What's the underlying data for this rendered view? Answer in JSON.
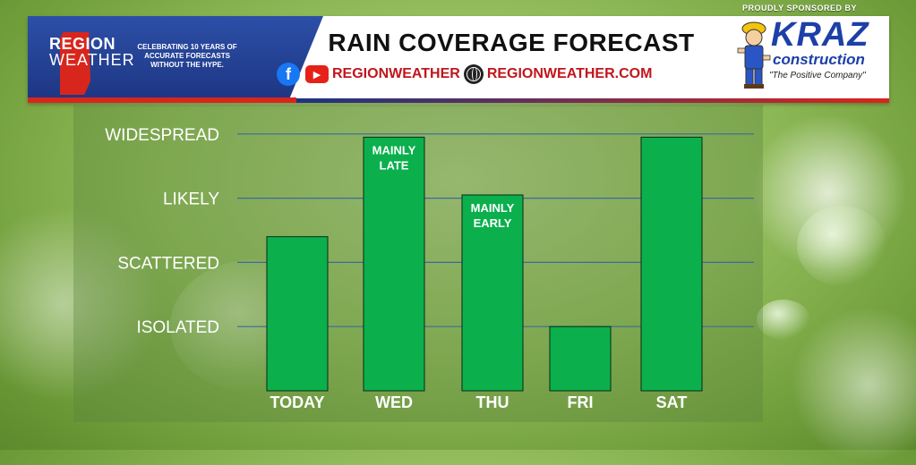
{
  "header": {
    "logo_line1": "REGION",
    "logo_line2": "WEATHER",
    "tagline": "CELEBRATING 10 YEARS OF ACCURATE FORECASTS WITHOUT THE HYPE.",
    "social_handle": "REGIONWEATHER",
    "website": "REGIONWEATHER.COM"
  },
  "sponsor": {
    "label": "PROUDLY SPONSORED BY",
    "name": "KRAZ",
    "name_sub": "construction",
    "tagline": "\"The Positive Company\""
  },
  "icons": {
    "facebook": "facebook-icon",
    "youtube": "youtube-icon",
    "globe": "globe-icon",
    "mascot": "construction-worker-mascot"
  },
  "colors": {
    "bar": "#0bb04d",
    "bar_border": "#0a2a12",
    "gridline": "#3d6a9c",
    "brand_blue": "#1c3581",
    "brand_red": "#d9261c",
    "sponsor_blue": "#1d3fa8"
  },
  "chart_data": {
    "type": "bar",
    "title": "RAIN COVERAGE FORECAST",
    "categories": [
      "TODAY",
      "WED",
      "THU",
      "FRI",
      "SAT"
    ],
    "values": [
      2.4,
      3.95,
      3.05,
      1.0,
      3.95
    ],
    "annotations": [
      "",
      "MAINLY LATE",
      "MAINLY EARLY",
      "",
      ""
    ],
    "y_levels": [
      "ISOLATED",
      "SCATTERED",
      "LIKELY",
      "WIDESPREAD"
    ],
    "ylim": [
      0,
      5
    ],
    "grid": true
  }
}
